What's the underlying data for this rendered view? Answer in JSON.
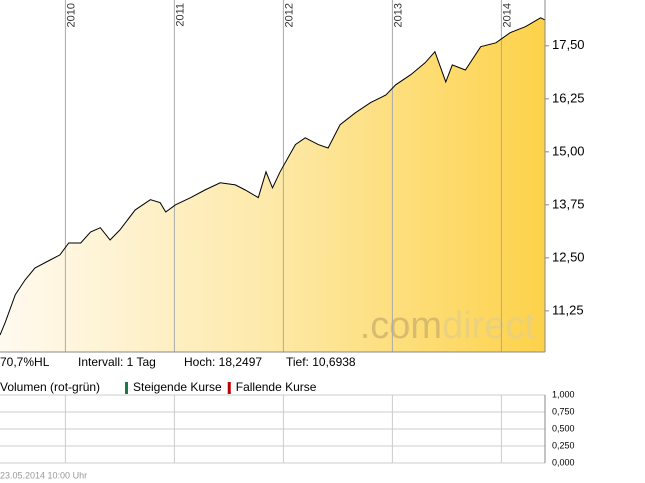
{
  "chart_data": [
    {
      "type": "area",
      "x": [
        2009.4,
        2009.45,
        2009.54,
        2009.63,
        2009.72,
        2009.86,
        2009.95,
        2010.03,
        2010.14,
        2010.23,
        2010.32,
        2010.41,
        2010.5,
        2010.64,
        2010.78,
        2010.87,
        2010.92,
        2011.01,
        2011.15,
        2011.28,
        2011.42,
        2011.56,
        2011.65,
        2011.77,
        2011.84,
        2011.9,
        2011.97,
        2012.11,
        2012.2,
        2012.32,
        2012.41,
        2012.52,
        2012.66,
        2012.8,
        2012.94,
        2013.03,
        2013.17,
        2013.3,
        2013.39,
        2013.49,
        2013.55,
        2013.67,
        2013.81,
        2013.95,
        2014.08,
        2014.22,
        2014.36,
        2014.4
      ],
      "values": [
        10.68,
        10.99,
        11.63,
        11.98,
        12.26,
        12.45,
        12.57,
        12.85,
        12.85,
        13.11,
        13.21,
        12.92,
        13.16,
        13.63,
        13.87,
        13.8,
        13.58,
        13.75,
        13.92,
        14.1,
        14.27,
        14.22,
        14.1,
        13.92,
        14.53,
        14.15,
        14.53,
        15.17,
        15.33,
        15.17,
        15.09,
        15.64,
        15.92,
        16.16,
        16.34,
        16.58,
        16.82,
        17.1,
        17.36,
        16.65,
        17.05,
        16.93,
        17.48,
        17.57,
        17.81,
        17.95,
        18.16,
        18.11
      ],
      "color": "#000000",
      "xlim": [
        2009.4,
        2014.4
      ],
      "xticks": [
        2010,
        2011,
        2012,
        2013,
        2014
      ],
      "ylim": [
        10.28,
        18.58
      ],
      "yticks": [
        {
          "value": 11.25,
          "label": "11,25"
        },
        {
          "value": 12.5,
          "label": "12,50"
        },
        {
          "value": 13.75,
          "label": "13,75"
        },
        {
          "value": 15,
          "label": "15,00"
        },
        {
          "value": 16.25,
          "label": "16,25"
        },
        {
          "value": 17.5,
          "label": "17,50"
        }
      ],
      "watermark": [
        ".com",
        "direct"
      ],
      "info": [
        "70,7%HL",
        "Intervall: 1 Tag",
        "Hoch: 18,2497",
        "Tief: 10,6938"
      ]
    },
    {
      "type": "volume",
      "title": "Volumen (rot-grün)",
      "legend": [
        {
          "name": "Steigende Kurse",
          "color": "#1a7a4a"
        },
        {
          "name": "Fallende Kurse",
          "color": "#c00000"
        }
      ],
      "ylim": [
        0,
        1
      ],
      "yticks": [
        {
          "value": 0,
          "label": "0,000"
        },
        {
          "value": 0.25,
          "label": "0,250"
        },
        {
          "value": 0.5,
          "label": "0,500"
        },
        {
          "value": 0.75,
          "label": "0,750"
        },
        {
          "value": 1,
          "label": "1,000"
        }
      ]
    }
  ],
  "timestamp": "23.05.2014 10:00 Uhr"
}
